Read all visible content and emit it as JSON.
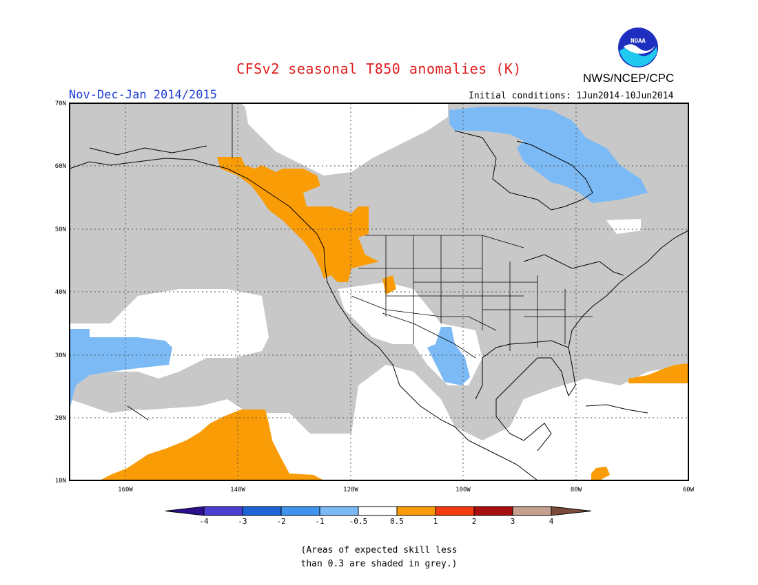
{
  "title": "CFSv2 seasonal T850 anomalies (K)",
  "agency": "NWS/NCEP/CPC",
  "logo_text": "NOAA",
  "period": "Nov-Dec-Jan 2014/2015",
  "initial_conditions": "Initial conditions: 1Jun2014-10Jun2014",
  "map": {
    "lat_labels": [
      "70N",
      "60N",
      "50N",
      "40N",
      "30N",
      "20N",
      "10N"
    ],
    "lon_labels": [
      "160W",
      "140W",
      "120W",
      "100W",
      "80W",
      "60W"
    ],
    "region": {
      "lon_min": -170,
      "lon_max": -60,
      "lat_min": 10,
      "lat_max": 70
    }
  },
  "legend": {
    "labels": [
      "-4",
      "-3",
      "-2",
      "-1",
      "-0.5",
      "0.5",
      "1",
      "2",
      "3",
      "4"
    ],
    "colors": [
      "#2a0f8f",
      "#4a3fd1",
      "#1f64d6",
      "#3f94ee",
      "#7cbaf6",
      "#ffffff",
      "#f99c06",
      "#f43c10",
      "#a80e0e",
      "#c4a090",
      "#7a4a3a"
    ]
  },
  "note_line1": "(Areas of expected skill less",
  "note_line2": "than 0.3 are shaded in grey.)",
  "colors": {
    "skill_grey": "#c8c8c8",
    "positive_orange": "#f99c06",
    "negative_blue": "#7cbaf6",
    "title_red": "#e01b1b",
    "period_blue": "#1f3fd6"
  }
}
